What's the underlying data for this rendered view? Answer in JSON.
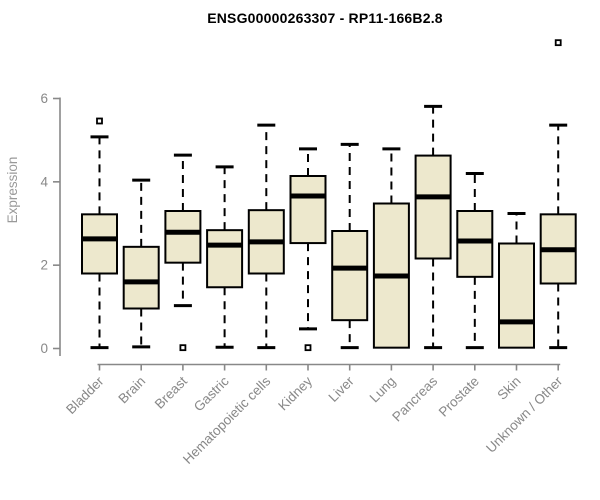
{
  "chart_data": {
    "type": "boxplot",
    "title": "ENSG00000263307 - RP11-166B2.8",
    "ylabel": "Expression",
    "xlabel": "",
    "ylim": [
      0,
      6
    ],
    "yticks": [
      0,
      2,
      4,
      6
    ],
    "grid": false,
    "legend": "none",
    "categories": [
      "Bladder",
      "Brain",
      "Breast",
      "Gastric",
      "Hematopoietic cells",
      "Kidney",
      "Liver",
      "Lung",
      "Pancreas",
      "Prostate",
      "Skin",
      "Unknown / Other"
    ],
    "boxes": [
      {
        "category": "Bladder",
        "low": 0.02,
        "q1": 1.8,
        "median": 2.63,
        "q3": 3.22,
        "high": 5.08,
        "outliers": [
          5.46
        ]
      },
      {
        "category": "Brain",
        "low": 0.04,
        "q1": 0.96,
        "median": 1.6,
        "q3": 2.44,
        "high": 4.04,
        "outliers": []
      },
      {
        "category": "Breast",
        "low": 1.03,
        "q1": 2.06,
        "median": 2.79,
        "q3": 3.3,
        "high": 4.64,
        "outliers": [
          0.02
        ]
      },
      {
        "category": "Gastric",
        "low": 0.03,
        "q1": 1.47,
        "median": 2.48,
        "q3": 2.84,
        "high": 4.36,
        "outliers": []
      },
      {
        "category": "Hematopoietic cells",
        "low": 0.02,
        "q1": 1.8,
        "median": 2.56,
        "q3": 3.32,
        "high": 5.36,
        "outliers": []
      },
      {
        "category": "Kidney",
        "low": 0.47,
        "q1": 2.53,
        "median": 3.66,
        "q3": 4.14,
        "high": 4.79,
        "outliers": [
          0.02
        ]
      },
      {
        "category": "Liver",
        "low": 0.02,
        "q1": 0.68,
        "median": 1.93,
        "q3": 2.82,
        "high": 4.9,
        "outliers": []
      },
      {
        "category": "Lung",
        "low": 0.02,
        "q1": 0.02,
        "median": 1.74,
        "q3": 3.48,
        "high": 4.79,
        "outliers": []
      },
      {
        "category": "Pancreas",
        "low": 0.02,
        "q1": 2.16,
        "median": 3.64,
        "q3": 4.63,
        "high": 5.81,
        "outliers": []
      },
      {
        "category": "Prostate",
        "low": 0.02,
        "q1": 1.72,
        "median": 2.58,
        "q3": 3.3,
        "high": 4.2,
        "outliers": []
      },
      {
        "category": "Skin",
        "low": 0.02,
        "q1": 0.02,
        "median": 0.64,
        "q3": 2.52,
        "high": 3.24,
        "outliers": []
      },
      {
        "category": "Unknown / Other",
        "low": 0.02,
        "q1": 1.56,
        "median": 2.37,
        "q3": 3.22,
        "high": 5.36,
        "outliers": [
          7.34
        ]
      }
    ],
    "colors": {
      "box_fill": "#EDE8CD",
      "box_stroke": "#000000",
      "median": "#000000",
      "whisker": "#000000",
      "outlier_stroke": "#000000",
      "outlier_fill": "#FFFFFF",
      "axis": "#888888",
      "tick_label": "#888888",
      "axis_label": "#999999",
      "title": "#000000",
      "background": "#FFFFFF"
    }
  }
}
